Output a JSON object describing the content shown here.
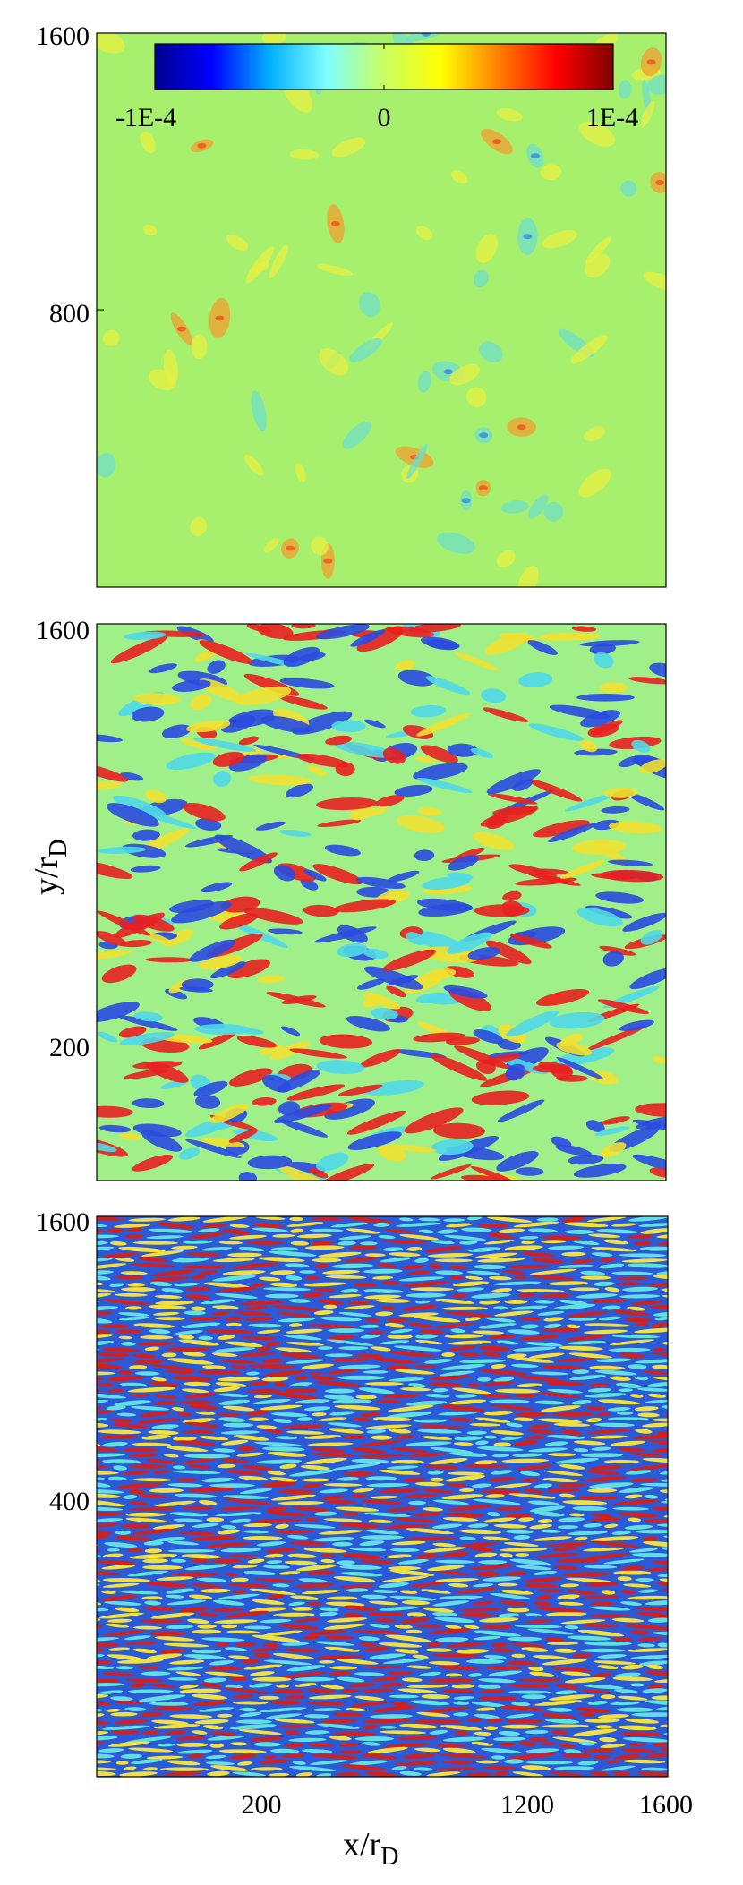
{
  "chart_data": [
    {
      "type": "heatmap",
      "panel": "top",
      "xlabel": "",
      "ylabel": "",
      "xlim": [
        0,
        1600
      ],
      "ylim": [
        0,
        1600
      ],
      "y_ticks": [
        {
          "value": 1600,
          "label": "1600"
        },
        {
          "value": 800,
          "label": "800"
        }
      ],
      "x_ticks": [],
      "pattern": "weak-blobs",
      "colorbar": {
        "min": -0.0001,
        "max": 0.0001,
        "tick_labels": [
          "-1E-4",
          "0",
          "1E-4"
        ],
        "colormap": "jet",
        "colors": [
          "#00008f",
          "#0000ff",
          "#00b0ff",
          "#80ffff",
          "#c8ff60",
          "#ffff00",
          "#ff8000",
          "#ff0000",
          "#800000"
        ]
      }
    },
    {
      "type": "heatmap",
      "panel": "middle",
      "xlabel": "",
      "ylabel": "y/r_D",
      "ylabel_main": "y/r",
      "ylabel_sub": "D",
      "xlim": [
        0,
        1600
      ],
      "ylim": [
        0,
        1600
      ],
      "y_ticks": [
        {
          "value": 1600,
          "label": "1600"
        },
        {
          "value": 200,
          "label": "200"
        }
      ],
      "x_ticks": [],
      "pattern": "elongated-filaments"
    },
    {
      "type": "heatmap",
      "panel": "bottom",
      "xlabel": "x/r_D",
      "xlabel_main": "x/r",
      "xlabel_sub": "D",
      "ylabel": "",
      "xlim": [
        0,
        1600
      ],
      "ylim": [
        0,
        1600
      ],
      "y_ticks": [
        {
          "value": 1600,
          "label": "1600"
        },
        {
          "value": 400,
          "label": "400"
        }
      ],
      "x_ticks": [
        {
          "value": 200,
          "label": "200"
        },
        {
          "value": 1200,
          "label": "1200"
        },
        {
          "value": 1600,
          "label": "1600"
        }
      ],
      "pattern": "horizontal-stripes"
    }
  ]
}
